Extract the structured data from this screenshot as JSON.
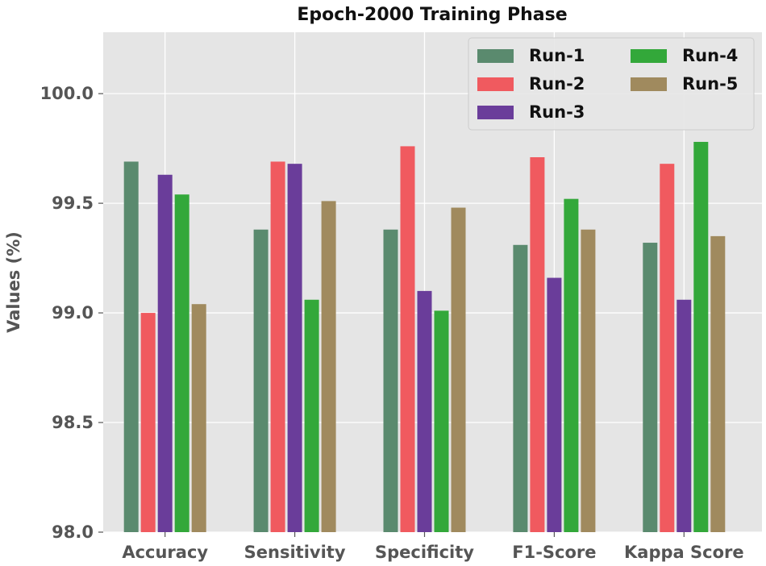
{
  "chart_data": {
    "type": "bar",
    "title": "Epoch-2000 Training Phase",
    "xlabel": "",
    "ylabel": "Values (%)",
    "ylim": [
      98.0,
      100.28
    ],
    "yticks": [
      98.0,
      98.5,
      99.0,
      99.5,
      100.0
    ],
    "ytick_labels": [
      "98.0",
      "98.5",
      "99.0",
      "99.5",
      "100.0"
    ],
    "grid": true,
    "legend_position": "top-right",
    "categories": [
      "Accuracy",
      "Sensitivity",
      "Specificity",
      "F1-Score",
      "Kappa Score"
    ],
    "series": [
      {
        "name": "Run-1",
        "color": "#5a8a6e",
        "values": [
          99.69,
          99.38,
          99.38,
          99.31,
          99.32
        ]
      },
      {
        "name": "Run-2",
        "color": "#f05a5f",
        "values": [
          99.0,
          99.69,
          99.76,
          99.71,
          99.68
        ]
      },
      {
        "name": "Run-3",
        "color": "#6a3d9a",
        "values": [
          99.63,
          99.68,
          99.1,
          99.16,
          99.06
        ]
      },
      {
        "name": "Run-4",
        "color": "#33a83a",
        "values": [
          99.54,
          99.06,
          99.01,
          99.52,
          99.78
        ]
      },
      {
        "name": "Run-5",
        "color": "#a08a5e",
        "values": [
          99.04,
          99.51,
          99.48,
          99.38,
          99.35
        ]
      }
    ]
  }
}
